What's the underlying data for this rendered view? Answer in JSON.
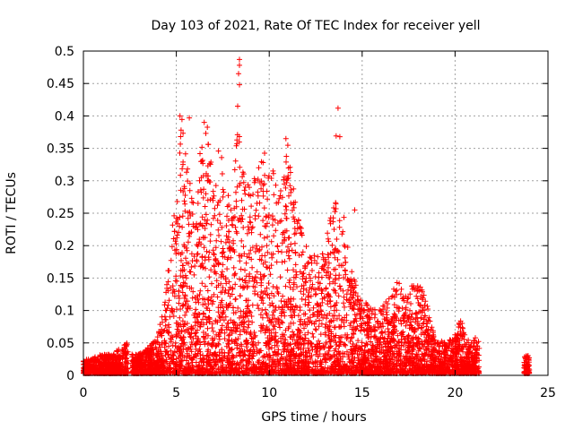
{
  "chart_data": {
    "type": "scatter",
    "title": "Day 103 of 2021, Rate Of TEC Index for receiver yell",
    "xlabel": "GPS time / hours",
    "ylabel": "ROTI / TECUs",
    "xlim": [
      0,
      25
    ],
    "ylim": [
      0,
      0.5
    ],
    "x_ticks": [
      0,
      5,
      10,
      15,
      20,
      25
    ],
    "y_ticks": [
      0,
      0.05,
      0.1,
      0.15,
      0.2,
      0.25,
      0.3,
      0.35,
      0.4,
      0.45,
      0.5
    ],
    "x_tick_labels": [
      "0",
      "5",
      "10",
      "15",
      "20",
      "25"
    ],
    "y_tick_labels": [
      "0",
      "0.05",
      "0.1",
      "0.15",
      "0.2",
      "0.25",
      "0.3",
      "0.35",
      "0.4",
      "0.45",
      "0.5"
    ],
    "grid": true,
    "marker": "+",
    "color": "#ff0000",
    "envelope": [
      [
        0.0,
        0.02
      ],
      [
        0.5,
        0.025
      ],
      [
        1.0,
        0.03
      ],
      [
        1.5,
        0.03
      ],
      [
        2.0,
        0.04
      ],
      [
        2.3,
        0.05
      ],
      [
        2.6,
        0.03
      ],
      [
        3.0,
        0.03
      ],
      [
        3.5,
        0.04
      ],
      [
        4.0,
        0.06
      ],
      [
        4.3,
        0.1
      ],
      [
        4.6,
        0.18
      ],
      [
        5.0,
        0.28
      ],
      [
        5.3,
        0.4
      ],
      [
        5.7,
        0.3
      ],
      [
        6.0,
        0.25
      ],
      [
        6.3,
        0.35
      ],
      [
        6.7,
        0.39
      ],
      [
        7.0,
        0.3
      ],
      [
        7.3,
        0.35
      ],
      [
        7.7,
        0.3
      ],
      [
        8.0,
        0.25
      ],
      [
        8.3,
        0.41
      ],
      [
        8.5,
        0.32
      ],
      [
        9.0,
        0.3
      ],
      [
        9.3,
        0.31
      ],
      [
        9.7,
        0.35
      ],
      [
        10.0,
        0.31
      ],
      [
        10.5,
        0.33
      ],
      [
        11.0,
        0.36
      ],
      [
        11.5,
        0.25
      ],
      [
        12.0,
        0.2
      ],
      [
        12.5,
        0.18
      ],
      [
        13.0,
        0.2
      ],
      [
        13.5,
        0.27
      ],
      [
        14.0,
        0.25
      ],
      [
        14.5,
        0.15
      ],
      [
        15.0,
        0.12
      ],
      [
        15.5,
        0.1
      ],
      [
        16.0,
        0.1
      ],
      [
        16.5,
        0.12
      ],
      [
        17.0,
        0.16
      ],
      [
        17.3,
        0.12
      ],
      [
        17.8,
        0.14
      ],
      [
        18.3,
        0.13
      ],
      [
        18.7,
        0.08
      ],
      [
        19.0,
        0.05
      ],
      [
        19.5,
        0.05
      ],
      [
        20.0,
        0.06
      ],
      [
        20.3,
        0.09
      ],
      [
        20.6,
        0.05
      ],
      [
        21.0,
        0.06
      ],
      [
        21.3,
        0.05
      ]
    ],
    "segments": [
      {
        "x_start": 0.0,
        "x_end": 2.4
      },
      {
        "x_start": 2.6,
        "x_end": 21.3
      },
      {
        "x_start": 23.7,
        "x_end": 24.0
      }
    ],
    "outliers": [
      {
        "x": 8.4,
        "y": 0.487
      },
      {
        "x": 8.4,
        "y": 0.478
      },
      {
        "x": 8.35,
        "y": 0.465
      },
      {
        "x": 8.4,
        "y": 0.448
      },
      {
        "x": 8.3,
        "y": 0.415
      },
      {
        "x": 13.7,
        "y": 0.412
      },
      {
        "x": 13.6,
        "y": 0.369
      },
      {
        "x": 13.8,
        "y": 0.368
      },
      {
        "x": 14.6,
        "y": 0.255
      },
      {
        "x": 5.2,
        "y": 0.4
      },
      {
        "x": 5.7,
        "y": 0.397
      },
      {
        "x": 6.5,
        "y": 0.39
      },
      {
        "x": 10.9,
        "y": 0.365
      }
    ]
  }
}
